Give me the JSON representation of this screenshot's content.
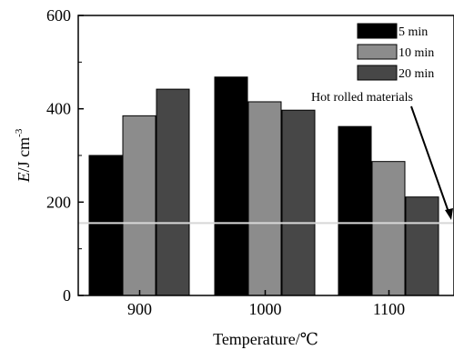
{
  "chart_data": {
    "type": "bar",
    "categories": [
      "900",
      "1000",
      "1100"
    ],
    "series": [
      {
        "name": "5 min",
        "values": [
          300,
          468,
          362
        ],
        "color": "#000000"
      },
      {
        "name": "10 min",
        "values": [
          385,
          415,
          287
        ],
        "color": "#8c8c8c"
      },
      {
        "name": "20 min",
        "values": [
          442,
          397,
          211
        ],
        "color": "#474747"
      }
    ],
    "xlabel": "Temperature/℃",
    "ylabel_var": "E",
    "ylabel_unit": "/J cm",
    "ylabel_exp": "-3",
    "ylim": [
      0,
      600
    ],
    "yticks": [
      "0",
      "200",
      "400",
      "600"
    ],
    "reference_line": {
      "value": 155,
      "label": "Hot rolled materials",
      "color": "#d8d8d8"
    },
    "legend_position": "top-right",
    "grid": false
  }
}
